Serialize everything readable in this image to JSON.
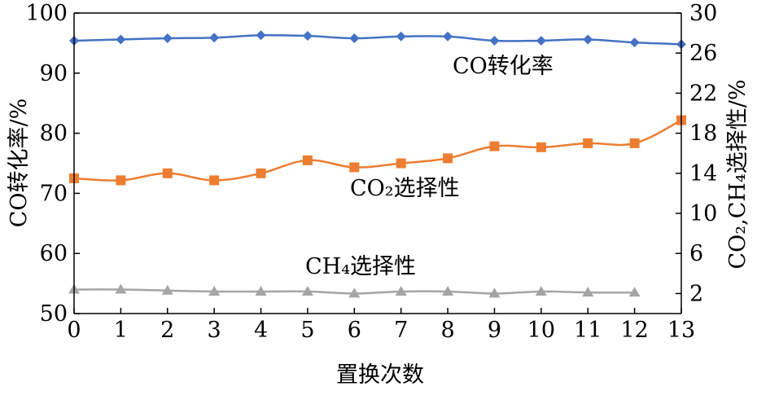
{
  "chart_data": {
    "type": "line",
    "xlabel": "置换次数",
    "ylabel_left": "CO转化率/%",
    "ylabel_right": "CO₂,CH₄选择性/%",
    "xlim": [
      0,
      13
    ],
    "ylim_left": [
      50,
      100
    ],
    "ylim_right": [
      0,
      30
    ],
    "x_ticks": [
      0,
      1,
      2,
      3,
      4,
      5,
      6,
      7,
      8,
      9,
      10,
      11,
      12,
      13
    ],
    "y_ticks_left": [
      50,
      60,
      70,
      80,
      90,
      100
    ],
    "y_ticks_right": [
      2,
      6,
      10,
      14,
      18,
      22,
      26,
      30
    ],
    "grid": false,
    "legend": "inline labels",
    "series": [
      {
        "name": "CO转化率",
        "axis": "left",
        "marker": "diamond",
        "color": "#4472C4",
        "x": [
          0,
          1,
          2,
          3,
          4,
          5,
          6,
          7,
          8,
          9,
          10,
          11,
          12,
          13
        ],
        "y": [
          95.4,
          95.6,
          95.8,
          95.9,
          96.3,
          96.2,
          95.8,
          96.1,
          96.1,
          95.4,
          95.4,
          95.6,
          95.1,
          94.8
        ]
      },
      {
        "name": "CO₂选择性",
        "axis": "right",
        "marker": "square",
        "color": "#ED7D31",
        "x": [
          0,
          1,
          2,
          3,
          4,
          5,
          6,
          7,
          8,
          9,
          10,
          11,
          12,
          13
        ],
        "y": [
          13.5,
          13.3,
          14.0,
          13.3,
          14.0,
          15.3,
          14.6,
          15.0,
          15.5,
          16.7,
          16.6,
          17.0,
          17.0,
          19.3
        ]
      },
      {
        "name": "CH₄选择性",
        "axis": "right",
        "marker": "triangle",
        "color": "#A5A5A5",
        "x": [
          0,
          1,
          2,
          3,
          4,
          5,
          6,
          7,
          8,
          9,
          10,
          11,
          12
        ],
        "y": [
          2.4,
          2.4,
          2.3,
          2.2,
          2.2,
          2.2,
          2.0,
          2.2,
          2.2,
          2.0,
          2.2,
          2.1,
          2.1
        ]
      }
    ]
  }
}
